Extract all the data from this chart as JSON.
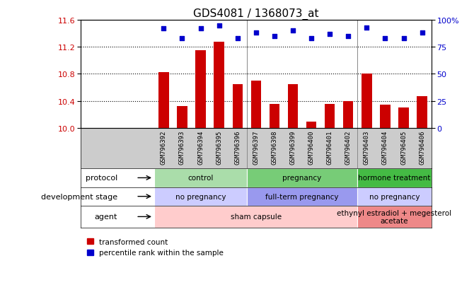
{
  "title": "GDS4081 / 1368073_at",
  "samples": [
    "GSM796392",
    "GSM796393",
    "GSM796394",
    "GSM796395",
    "GSM796396",
    "GSM796397",
    "GSM796398",
    "GSM796399",
    "GSM796400",
    "GSM796401",
    "GSM796402",
    "GSM796403",
    "GSM796404",
    "GSM796405",
    "GSM796406"
  ],
  "bar_values": [
    10.83,
    10.32,
    11.15,
    11.28,
    10.65,
    10.7,
    10.35,
    10.65,
    10.09,
    10.35,
    10.4,
    10.8,
    10.34,
    10.3,
    10.47
  ],
  "dot_values_pct": [
    92,
    83,
    92,
    95,
    83,
    88,
    85,
    90,
    83,
    87,
    85,
    93,
    83,
    83,
    88
  ],
  "ylim_left": [
    10.0,
    11.6
  ],
  "ylim_right": [
    0,
    100
  ],
  "yticks_left": [
    10.0,
    10.4,
    10.8,
    11.2,
    11.6
  ],
  "yticks_right": [
    0,
    25,
    50,
    75,
    100
  ],
  "bar_color": "#cc0000",
  "dot_color": "#0000cc",
  "title_fontsize": 11,
  "protocol_flat": [
    {
      "label": "control",
      "start": 0,
      "end": 4,
      "color": "#aaddaa"
    },
    {
      "label": "pregnancy",
      "start": 5,
      "end": 10,
      "color": "#77cc77"
    },
    {
      "label": "hormone treatment",
      "start": 11,
      "end": 14,
      "color": "#44bb44"
    }
  ],
  "dev_flat": [
    {
      "label": "no pregnancy",
      "start": 0,
      "end": 4,
      "color": "#ccccff"
    },
    {
      "label": "full-term pregnancy",
      "start": 5,
      "end": 10,
      "color": "#9999ee"
    },
    {
      "label": "no pregnancy",
      "start": 11,
      "end": 14,
      "color": "#ccccff"
    }
  ],
  "agent_flat": [
    {
      "label": "sham capsule",
      "start": 0,
      "end": 10,
      "color": "#ffcccc"
    },
    {
      "label": "ethynyl estradiol + megesterol\nacetate",
      "start": 11,
      "end": 14,
      "color": "#ee8888"
    }
  ],
  "row_labels": [
    "protocol",
    "development stage",
    "agent"
  ],
  "label_color": "#000000",
  "sample_bg_color": "#cccccc",
  "sep_color": "#888888",
  "legend_items": [
    {
      "label": "transformed count",
      "color": "#cc0000"
    },
    {
      "label": "percentile rank within the sample",
      "color": "#0000cc"
    }
  ]
}
